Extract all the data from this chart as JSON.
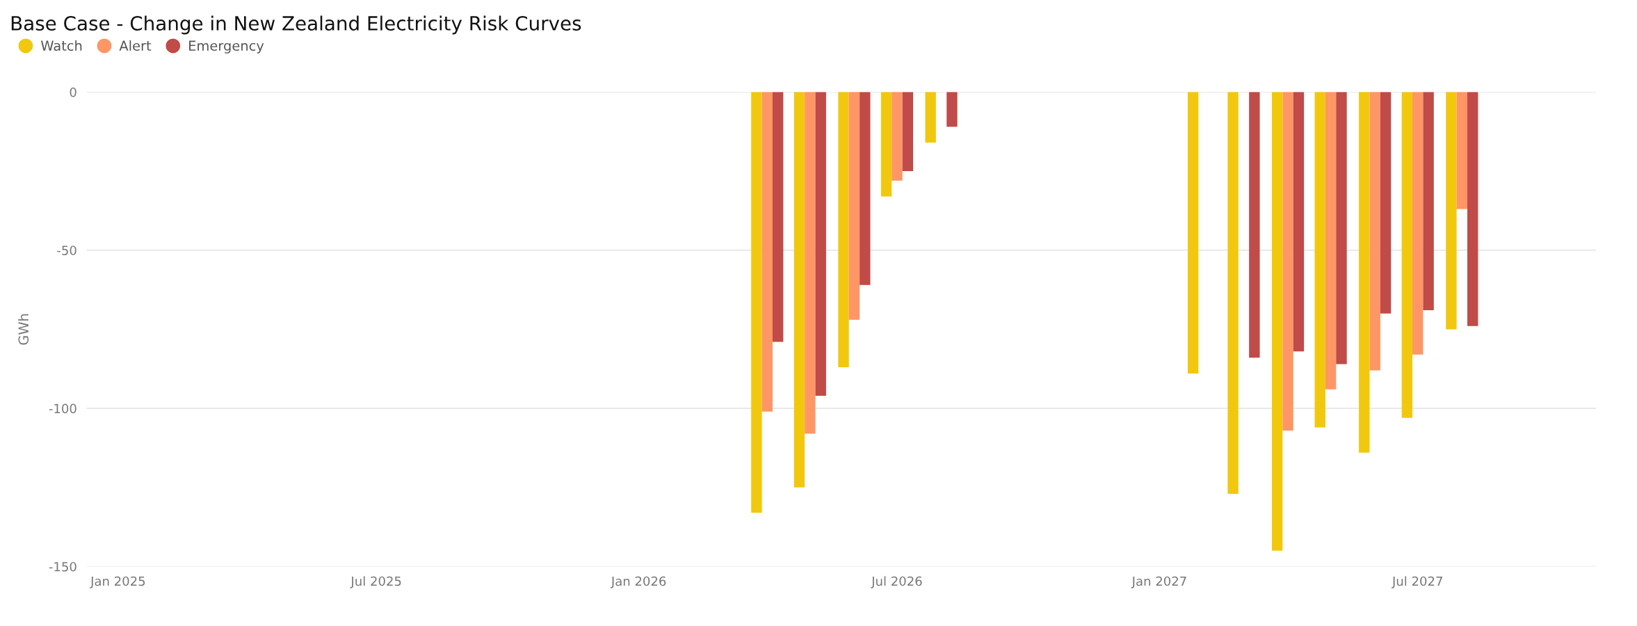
{
  "chart_data": {
    "type": "bar",
    "title": "Base Case - Change in New Zealand Electricity Risk Curves",
    "ylabel": "GWh",
    "x": [
      "2026-04",
      "2026-05",
      "2026-06",
      "2026-07",
      "2026-08",
      "2027-02",
      "2027-03",
      "2027-04",
      "2027-05",
      "2027-06",
      "2027-07",
      "2027-08"
    ],
    "series": [
      {
        "name": "Watch",
        "color": "#f2c80f",
        "values": [
          -133,
          -125,
          -87,
          -33,
          -16,
          -89,
          -127,
          -145,
          -106,
          -114,
          -103,
          -75
        ]
      },
      {
        "name": "Alert",
        "color": "#fe9666",
        "values": [
          -101,
          -108,
          -72,
          -28,
          null,
          null,
          null,
          -107,
          -94,
          -88,
          -83,
          -37
        ]
      },
      {
        "name": "Emergency",
        "color": "#c04b48",
        "values": [
          -79,
          -96,
          -61,
          -25,
          -11,
          null,
          -84,
          -82,
          -86,
          -70,
          -69,
          -74
        ]
      }
    ],
    "xlim": [
      "2024-12-10",
      "2027-11-03"
    ],
    "xticks": [
      {
        "value": "2025-01",
        "label": "Jan 2025"
      },
      {
        "value": "2025-07",
        "label": "Jul 2025"
      },
      {
        "value": "2026-01",
        "label": "Jan 2026"
      },
      {
        "value": "2026-07",
        "label": "Jul 2026"
      },
      {
        "value": "2027-01",
        "label": "Jan 2027"
      },
      {
        "value": "2027-07",
        "label": "Jul 2027"
      }
    ],
    "ylim": [
      -150,
      0
    ],
    "yticks": [
      0,
      -50,
      -100,
      -150
    ],
    "grid": "y",
    "legend": "top left",
    "marker": "circle"
  }
}
